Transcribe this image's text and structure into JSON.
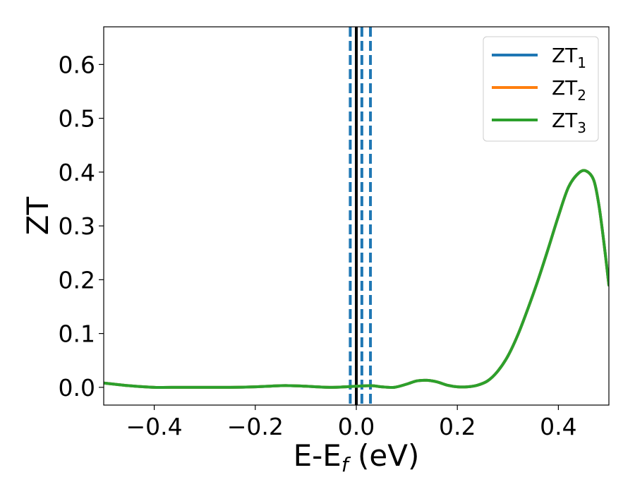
{
  "chart_data": {
    "type": "line",
    "title": "",
    "xlabel": {
      "main": "E-E",
      "sub": "f",
      "unit": " (eV)"
    },
    "ylabel": "ZT",
    "xlim": [
      -0.5,
      0.5
    ],
    "ylim": [
      -0.033,
      0.67
    ],
    "xticks": [
      -0.4,
      -0.2,
      0.0,
      0.2,
      0.4
    ],
    "xtick_labels": [
      "−0.4",
      "−0.2",
      "0.0",
      "0.2",
      "0.4"
    ],
    "yticks": [
      0.0,
      0.1,
      0.2,
      0.3,
      0.4,
      0.5,
      0.6
    ],
    "ytick_labels": [
      "0.0",
      "0.1",
      "0.2",
      "0.3",
      "0.4",
      "0.5",
      "0.6"
    ],
    "grid": false,
    "legend_position": "top-right",
    "vertical_lines": [
      {
        "x": -0.012,
        "style": "dashed",
        "color": "#1f77b4"
      },
      {
        "x": 0.0,
        "style": "solid",
        "color": "#000000"
      },
      {
        "x": 0.011,
        "style": "dashed",
        "color": "#1f77b4"
      },
      {
        "x": 0.028,
        "style": "dashed",
        "color": "#1f77b4"
      }
    ],
    "x": [
      -0.5,
      -0.45,
      -0.4,
      -0.35,
      -0.3,
      -0.25,
      -0.2,
      -0.15,
      -0.13,
      -0.1,
      -0.05,
      0.0,
      0.03,
      0.05,
      0.075,
      0.1,
      0.12,
      0.14,
      0.16,
      0.18,
      0.2,
      0.22,
      0.24,
      0.26,
      0.28,
      0.3,
      0.32,
      0.34,
      0.36,
      0.38,
      0.4,
      0.42,
      0.44,
      0.455,
      0.47,
      0.48,
      0.49,
      0.5
    ],
    "series": [
      {
        "name": "ZT",
        "sub": "1",
        "color": "#1f77b4",
        "values": [
          0.008,
          0.003,
          0.0,
          0.0,
          0.0,
          0.0,
          0.001,
          0.003,
          0.003,
          0.002,
          0.0,
          0.002,
          0.003,
          0.001,
          0.0,
          0.006,
          0.012,
          0.013,
          0.01,
          0.004,
          0.001,
          0.001,
          0.004,
          0.012,
          0.03,
          0.058,
          0.098,
          0.147,
          0.2,
          0.258,
          0.318,
          0.372,
          0.398,
          0.402,
          0.385,
          0.34,
          0.27,
          0.19
        ]
      },
      {
        "name": "ZT",
        "sub": "2",
        "color": "#ff7f0e",
        "values": [
          0.008,
          0.003,
          0.0,
          0.0,
          0.0,
          0.0,
          0.001,
          0.003,
          0.003,
          0.002,
          0.0,
          0.002,
          0.003,
          0.001,
          0.0,
          0.006,
          0.012,
          0.013,
          0.01,
          0.004,
          0.001,
          0.001,
          0.004,
          0.012,
          0.03,
          0.058,
          0.098,
          0.147,
          0.2,
          0.258,
          0.318,
          0.372,
          0.398,
          0.402,
          0.385,
          0.34,
          0.27,
          0.19
        ]
      },
      {
        "name": "ZT",
        "sub": "3",
        "color": "#2ca02c",
        "values": [
          0.008,
          0.003,
          0.0,
          0.0,
          0.0,
          0.0,
          0.001,
          0.003,
          0.003,
          0.002,
          0.0,
          0.002,
          0.003,
          0.001,
          0.0,
          0.006,
          0.012,
          0.013,
          0.01,
          0.004,
          0.001,
          0.001,
          0.004,
          0.012,
          0.03,
          0.058,
          0.098,
          0.147,
          0.2,
          0.258,
          0.318,
          0.372,
          0.398,
          0.402,
          0.385,
          0.34,
          0.27,
          0.19
        ]
      }
    ]
  }
}
